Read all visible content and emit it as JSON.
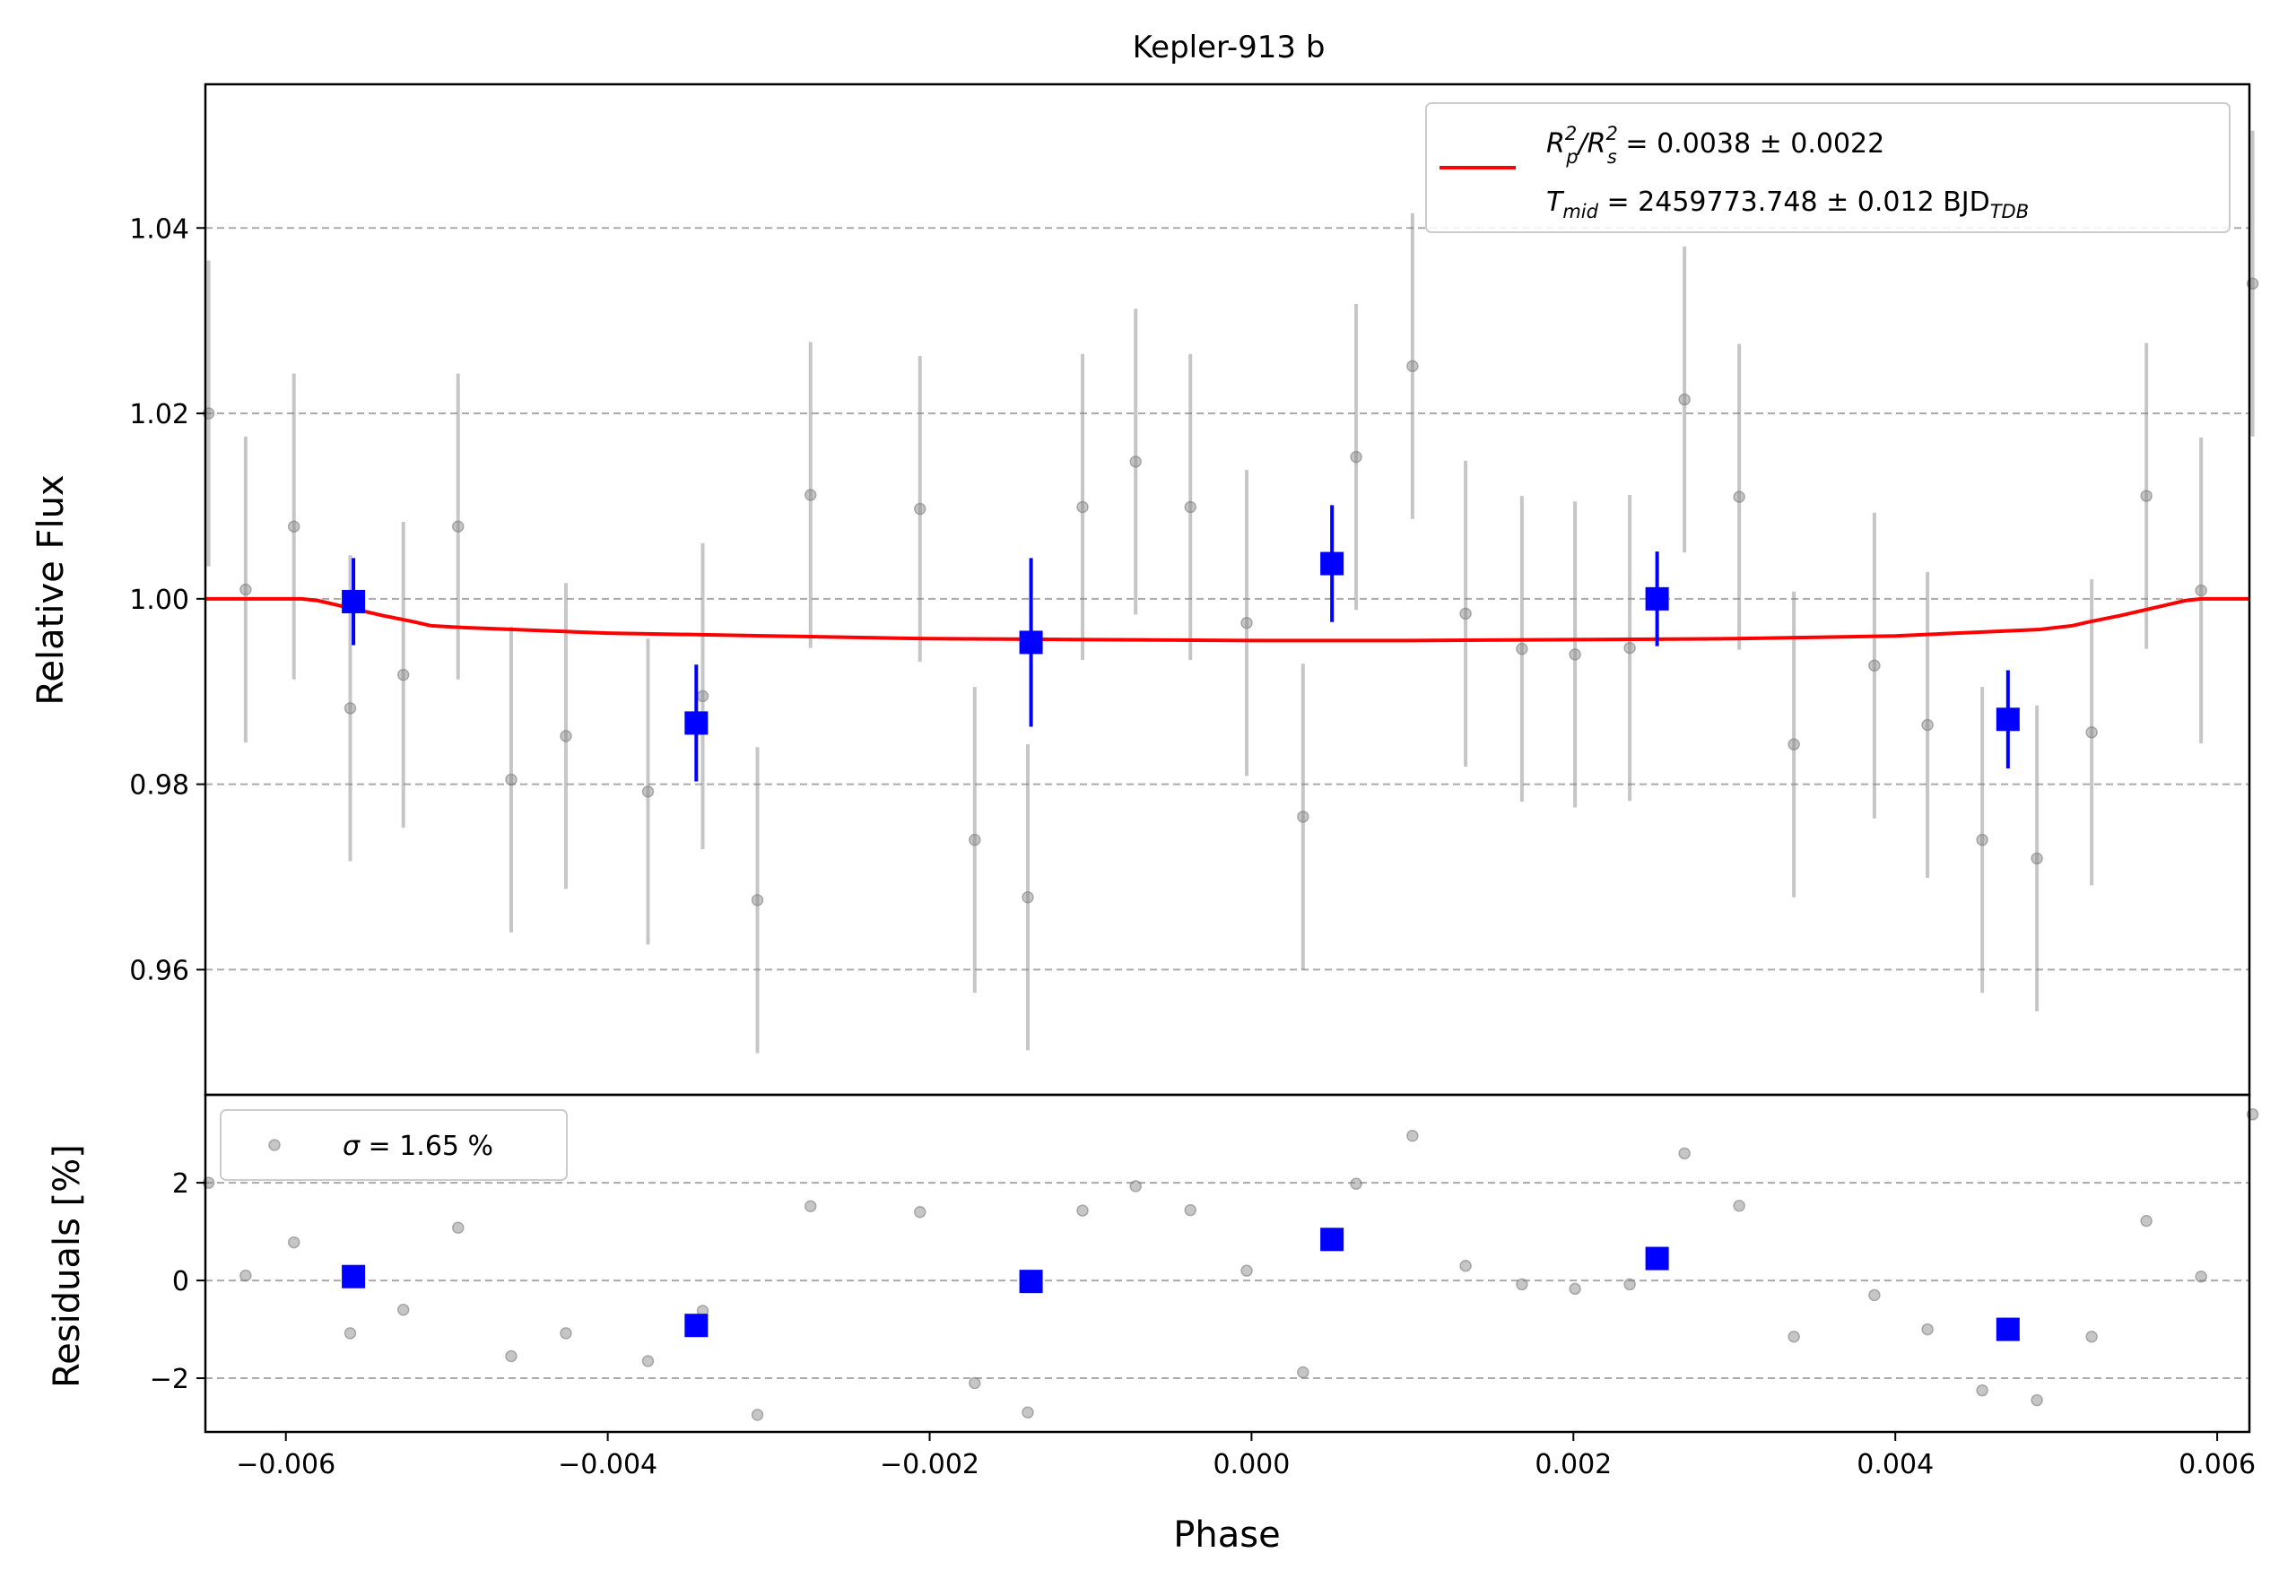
{
  "chart_data": {
    "type": "scatter",
    "title": "Kepler-913 b",
    "xlabel": "Phase",
    "xlim": [
      -0.0065,
      0.0062
    ],
    "x_ticks": [
      -0.006,
      -0.004,
      -0.002,
      0.0,
      0.002,
      0.004,
      0.006
    ],
    "x_tick_labels": [
      "−0.006",
      "−0.004",
      "−0.002",
      "0.000",
      "0.002",
      "0.004",
      "0.006"
    ],
    "top_panel": {
      "ylabel": "Relative Flux",
      "ylim": [
        0.9465,
        1.0555
      ],
      "y_ticks": [
        0.96,
        0.98,
        1.0,
        1.02,
        1.04
      ],
      "y_tick_labels": [
        "0.96",
        "0.98",
        "1.00",
        "1.02",
        "1.04"
      ],
      "grid": "horizontal dashed",
      "legend": {
        "placement": "top-right",
        "line1": {
          "pre": "R",
          "sub1": "p",
          "sup1": "2",
          "mid": "/R",
          "sub2": "s",
          "sup2": "2",
          "post": " = 0.0038 ± 0.0022"
        },
        "line2": {
          "pre": "T",
          "sub1": "mid",
          "post": " = 2459773.748 ± 0.012 BJD",
          "sub2": "TDB"
        }
      },
      "raw_points": {
        "color": "#808080",
        "x": [
          -0.00648,
          -0.00625,
          -0.00595,
          -0.0056,
          -0.00527,
          -0.00493,
          -0.0046,
          -0.00426,
          -0.00375,
          -0.00341,
          -0.00307,
          -0.00274,
          -0.00206,
          -0.00172,
          -0.00139,
          -0.00105,
          -0.00072,
          -0.00038,
          -3e-05,
          0.00032,
          0.00065,
          0.001,
          0.00133,
          0.00168,
          0.00201,
          0.00235,
          0.00269,
          0.00303,
          0.00337,
          0.00387,
          0.0042,
          0.00454,
          0.00488,
          0.00522,
          0.00556,
          0.0059,
          0.00622
        ],
        "y": [
          1.02,
          1.001,
          1.0078,
          0.9882,
          0.9918,
          1.0078,
          0.9805,
          0.9852,
          0.9792,
          0.9895,
          0.9675,
          1.0112,
          1.0097,
          0.974,
          0.9678,
          1.0099,
          1.0148,
          1.0099,
          0.9974,
          0.9765,
          1.0153,
          1.0251,
          0.9984,
          0.9946,
          0.994,
          0.9947,
          1.0215,
          1.011,
          0.9843,
          0.9928,
          0.9864,
          0.974,
          0.972,
          0.9856,
          1.0111,
          1.0009,
          1.034
        ],
        "err": [
          0.0165,
          0.0165,
          0.0165,
          0.0165,
          0.0165,
          0.0165,
          0.0165,
          0.0165,
          0.0165,
          0.0165,
          0.0165,
          0.0165,
          0.0165,
          0.0165,
          0.0165,
          0.0165,
          0.0165,
          0.0165,
          0.0165,
          0.0165,
          0.0165,
          0.0165,
          0.0165,
          0.0165,
          0.0165,
          0.0165,
          0.0165,
          0.0165,
          0.0165,
          0.0165,
          0.0165,
          0.0165,
          0.0165,
          0.0165,
          0.0165,
          0.0165,
          0.0165
        ]
      },
      "binned_points": {
        "color": "#0000ff",
        "x": [
          -0.00558,
          -0.00345,
          -0.00137,
          0.0005,
          0.00252,
          0.0047
        ],
        "y": [
          0.9997,
          0.9866,
          0.9953,
          1.0038,
          1.0,
          0.987
        ],
        "err": [
          0.0047,
          0.0063,
          0.0091,
          0.0063,
          0.0051,
          0.0053
        ]
      },
      "model": {
        "color": "#ff0000",
        "x": [
          -0.0065,
          -0.0059,
          -0.0058,
          -0.0056,
          -0.0054,
          -0.0052,
          -0.0051,
          -0.0049,
          -0.004,
          -0.003,
          -0.002,
          -0.001,
          0.0,
          0.001,
          0.002,
          0.003,
          0.004,
          0.0049,
          0.0051,
          0.0052,
          0.0054,
          0.0056,
          0.0058,
          0.0059,
          0.0062
        ],
        "y": [
          1.0,
          1.0,
          0.9998,
          0.999,
          0.9982,
          0.9975,
          0.9971,
          0.9969,
          0.9963,
          0.996,
          0.9957,
          0.9956,
          0.9955,
          0.9955,
          0.9956,
          0.9957,
          0.996,
          0.9967,
          0.9971,
          0.9975,
          0.9982,
          0.999,
          0.9998,
          1.0,
          1.0
        ]
      }
    },
    "bottom_panel": {
      "ylabel": "Residuals [%]",
      "ylim": [
        -3.1,
        3.8
      ],
      "y_ticks": [
        -2,
        0,
        2
      ],
      "y_tick_labels": [
        "−2",
        "0",
        "2"
      ],
      "grid": "horizontal dashed",
      "legend": {
        "placement": "top-left",
        "symbol": "σ",
        "text": " = 1.65 %"
      },
      "raw_residuals": [
        2.0,
        0.1,
        0.78,
        -1.08,
        -0.6,
        1.08,
        -1.55,
        -1.08,
        -1.65,
        -0.62,
        -2.75,
        1.52,
        1.4,
        -2.1,
        -2.7,
        1.43,
        1.93,
        1.44,
        0.2,
        -1.88,
        1.98,
        2.96,
        0.3,
        -0.08,
        -0.17,
        -0.08,
        2.6,
        1.53,
        -1.15,
        -0.3,
        -1.0,
        -2.25,
        -2.45,
        -1.15,
        1.22,
        0.08,
        3.4
      ],
      "binned_residuals": [
        0.08,
        -0.92,
        -0.02,
        0.84,
        0.45,
        -1.0
      ]
    }
  }
}
